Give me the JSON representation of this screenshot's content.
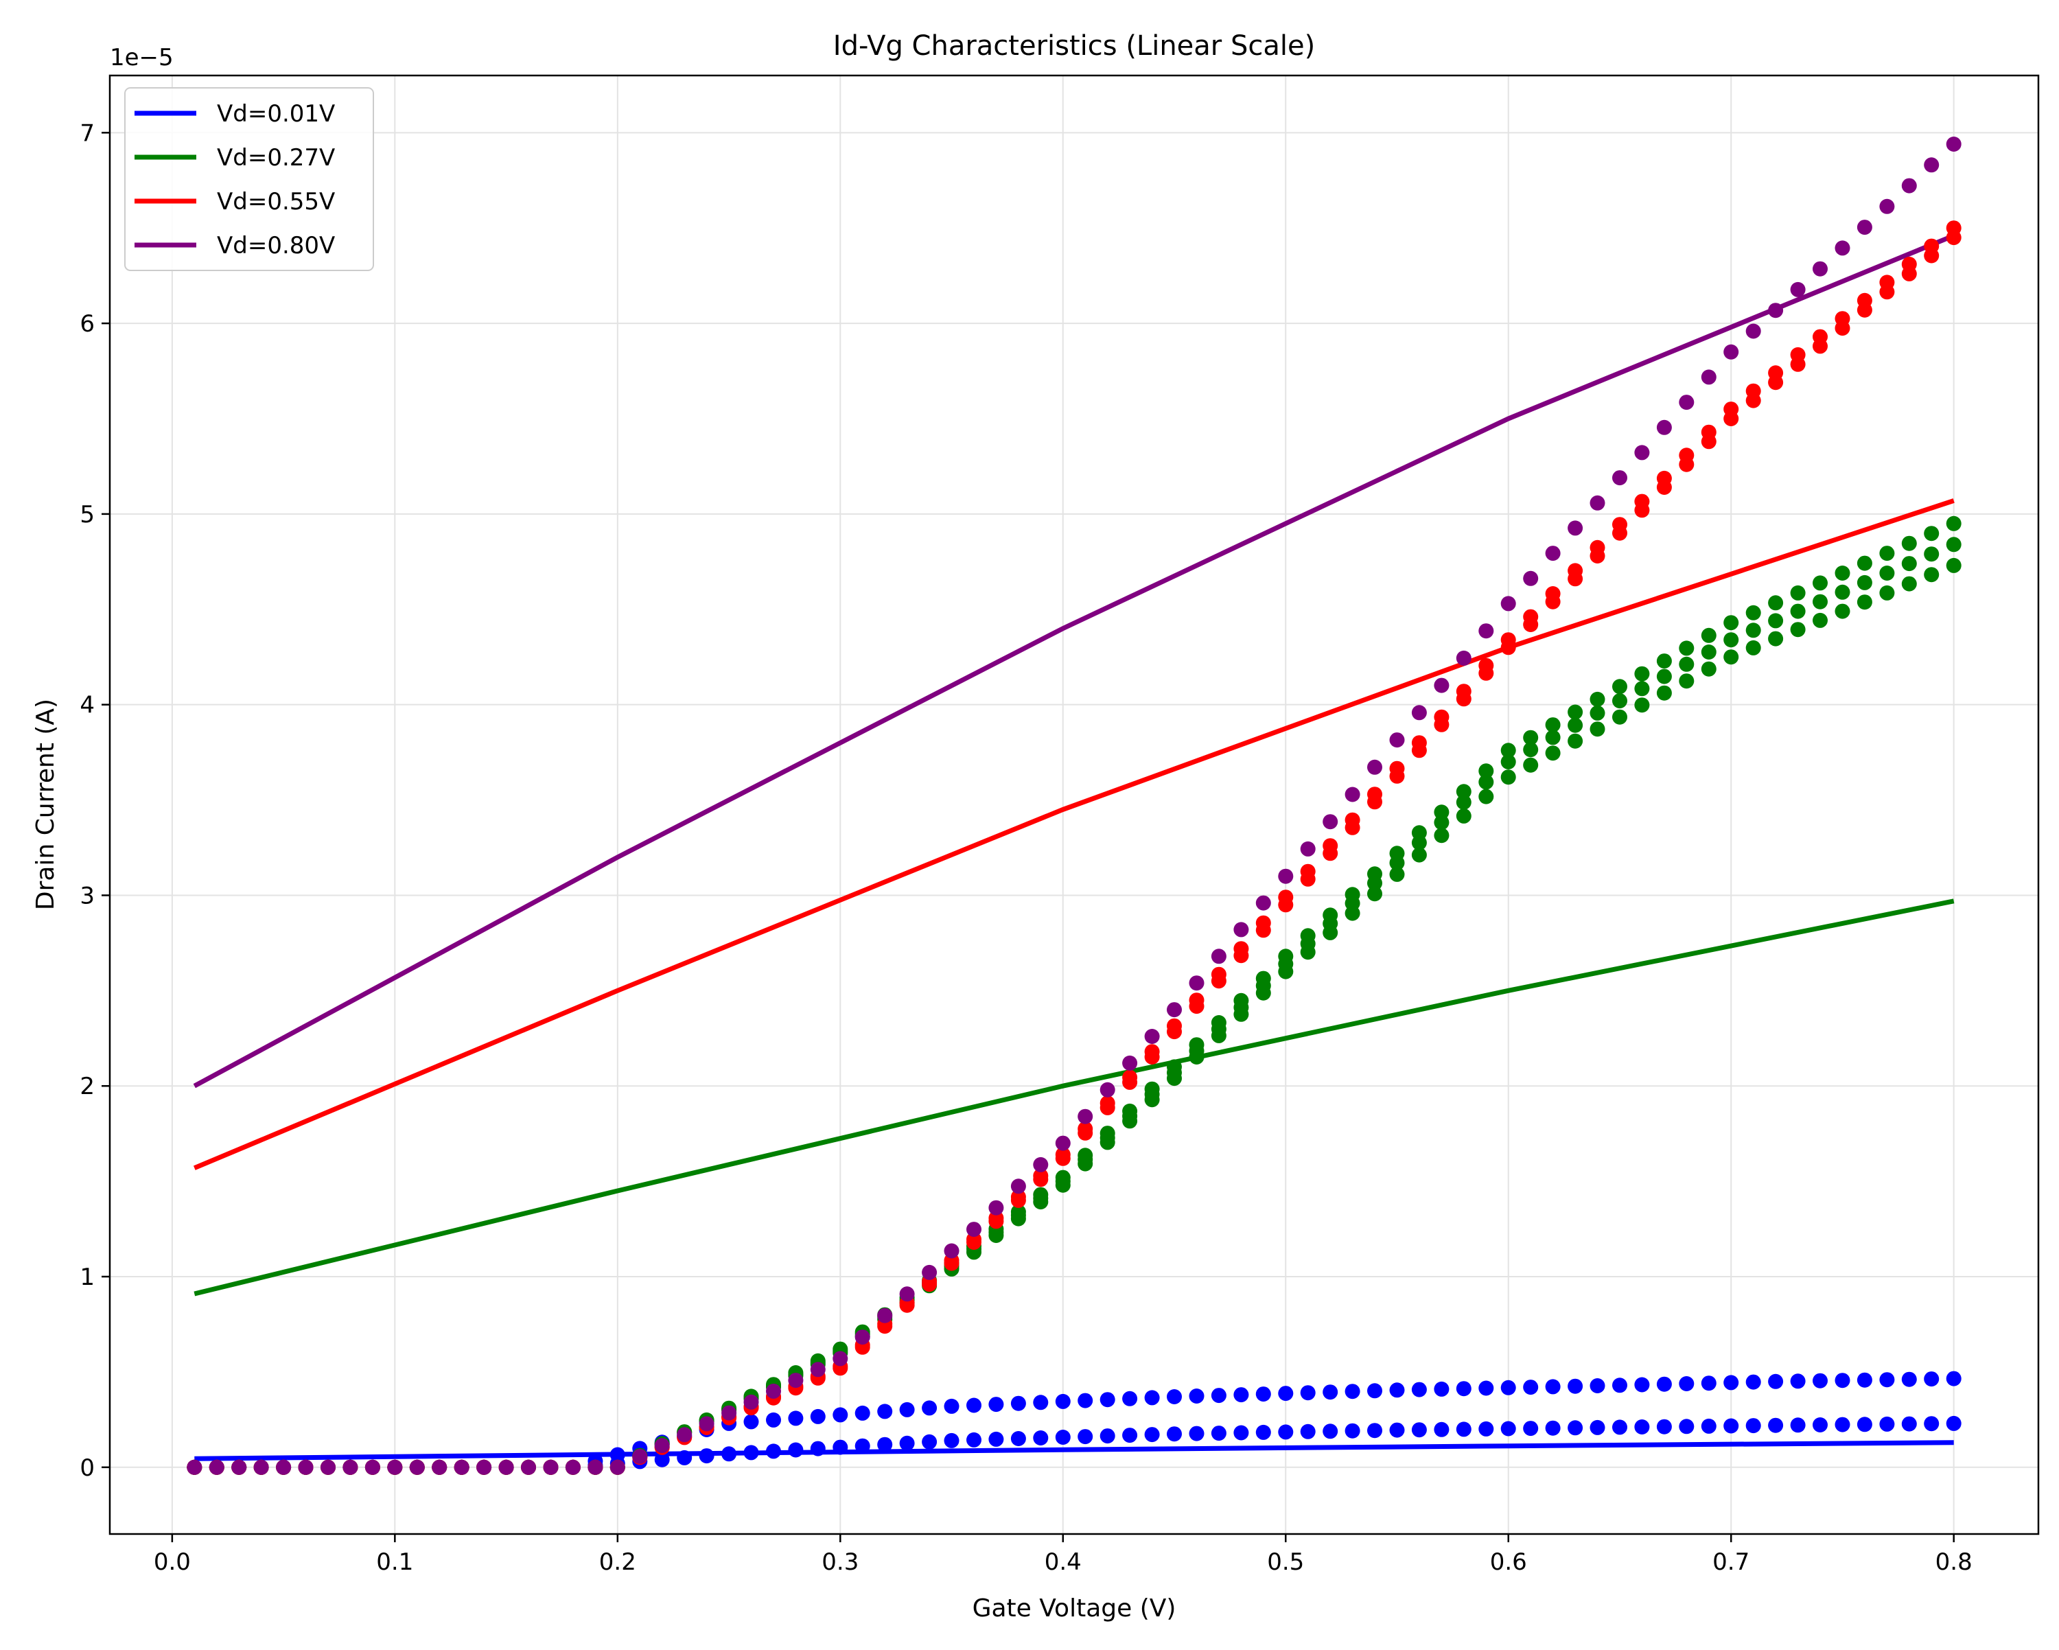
{
  "chart_data": {
    "type": "line",
    "title": "Id-Vg Characteristics (Linear Scale)",
    "xlabel": "Gate Voltage (V)",
    "ylabel": "Drain Current (A)",
    "y_scale_label": "1e−5",
    "xlim": [
      -0.028,
      0.838
    ],
    "ylim": [
      -3.5e-06,
      7.3e-05
    ],
    "x_ticks": [
      0.0,
      0.1,
      0.2,
      0.3,
      0.4,
      0.5,
      0.6,
      0.7,
      0.8
    ],
    "x_tick_labels": [
      "0.0",
      "0.1",
      "0.2",
      "0.3",
      "0.4",
      "0.5",
      "0.6",
      "0.7",
      "0.8"
    ],
    "y_ticks": [
      0,
      1e-05,
      2e-05,
      3e-05,
      4e-05,
      5e-05,
      6e-05,
      7e-05
    ],
    "y_tick_labels": [
      "0",
      "1",
      "2",
      "3",
      "4",
      "5",
      "6",
      "7"
    ],
    "grid": true,
    "legend_position": "top-left",
    "series": [
      {
        "name": "Vd=0.01V",
        "color": "#0000ff",
        "line": {
          "x": [
            0.01,
            0.2,
            0.4,
            0.6,
            0.8
          ],
          "y": [
            4.5e-07,
            6.8e-07,
            9.2e-07,
            1.12e-06,
            1.3e-06
          ]
        },
        "point_sets": [
          {
            "thresholds": [
              0.18,
              0.25
            ],
            "y_at": [
              0,
              2.3e-06,
              3.2e-06,
              3.7e-06,
              4.05e-06,
              4.3e-06,
              4.5e-06,
              4.65e-06,
              4.75e-06
            ]
          },
          {
            "thresholds": [
              0.2,
              0.25
            ],
            "y_at": [
              0,
              7e-07,
              1.4e-06,
              1.75e-06,
              1.95e-06,
              2.1e-06,
              2.2e-06,
              2.3e-06,
              2.35e-06
            ]
          }
        ]
      },
      {
        "name": "Vd=0.27V",
        "color": "#008000",
        "line": {
          "x": [
            0.01,
            0.2,
            0.4,
            0.6,
            0.8
          ],
          "y": [
            9.1e-06,
            1.45e-05,
            2e-05,
            2.5e-05,
            2.97e-05
          ]
        },
        "point_sets": [
          {
            "thresholds": [
              0.18,
              0.25
            ],
            "y_at": [
              0,
              6e-06,
              1.48e-05,
              2.6e-05,
              3.62e-05,
              4.25e-05,
              4.73e-05
            ],
            "x_at": [
              0.2,
              0.3,
              0.4,
              0.5,
              0.6,
              0.7,
              0.8
            ]
          },
          {
            "thresholds": [
              0.18,
              0.25
            ],
            "y_at": [
              0,
              6.1e-06,
              1.5e-05,
              2.64e-05,
              3.7e-05,
              4.34e-05,
              4.84e-05
            ],
            "x_at": [
              0.2,
              0.3,
              0.4,
              0.5,
              0.6,
              0.7,
              0.8
            ]
          },
          {
            "thresholds": [
              0.18,
              0.25
            ],
            "y_at": [
              0,
              6.2e-06,
              1.52e-05,
              2.68e-05,
              3.76e-05,
              4.43e-05,
              4.95e-05
            ],
            "x_at": [
              0.2,
              0.3,
              0.4,
              0.5,
              0.6,
              0.7,
              0.8
            ]
          }
        ]
      },
      {
        "name": "Vd=0.55V",
        "color": "#ff0000",
        "line": {
          "x": [
            0.01,
            0.2,
            0.4,
            0.6,
            0.8
          ],
          "y": [
            1.57e-05,
            2.5e-05,
            3.45e-05,
            4.3e-05,
            5.07e-05
          ]
        },
        "point_sets": [
          {
            "thresholds": [
              0.18,
              0.25
            ],
            "y_at": [
              0,
              5.2e-06,
              1.62e-05,
              2.95e-05,
              4.3e-05,
              5.5e-05,
              6.45e-05
            ],
            "x_at": [
              0.2,
              0.3,
              0.4,
              0.5,
              0.6,
              0.7,
              0.8
            ]
          },
          {
            "thresholds": [
              0.18,
              0.25
            ],
            "y_at": [
              0,
              5.3e-06,
              1.64e-05,
              2.99e-05,
              4.34e-05,
              5.55e-05,
              6.5e-05
            ],
            "x_at": [
              0.2,
              0.3,
              0.4,
              0.5,
              0.6,
              0.7,
              0.8
            ]
          }
        ]
      },
      {
        "name": "Vd=0.80V",
        "color": "#800080",
        "line": {
          "x": [
            0.01,
            0.2,
            0.4,
            0.6,
            0.8
          ],
          "y": [
            2e-05,
            3.2e-05,
            4.4e-05,
            5.5e-05,
            6.46e-05
          ]
        },
        "point_sets": [
          {
            "thresholds": [
              0.18,
              0.25
            ],
            "y_at": [
              0,
              5.7e-06,
              1.7e-05,
              3.1e-05,
              4.53e-05,
              5.85e-05,
              6.94e-05
            ],
            "x_at": [
              0.2,
              0.3,
              0.4,
              0.5,
              0.6,
              0.7,
              0.8
            ]
          }
        ]
      }
    ]
  }
}
